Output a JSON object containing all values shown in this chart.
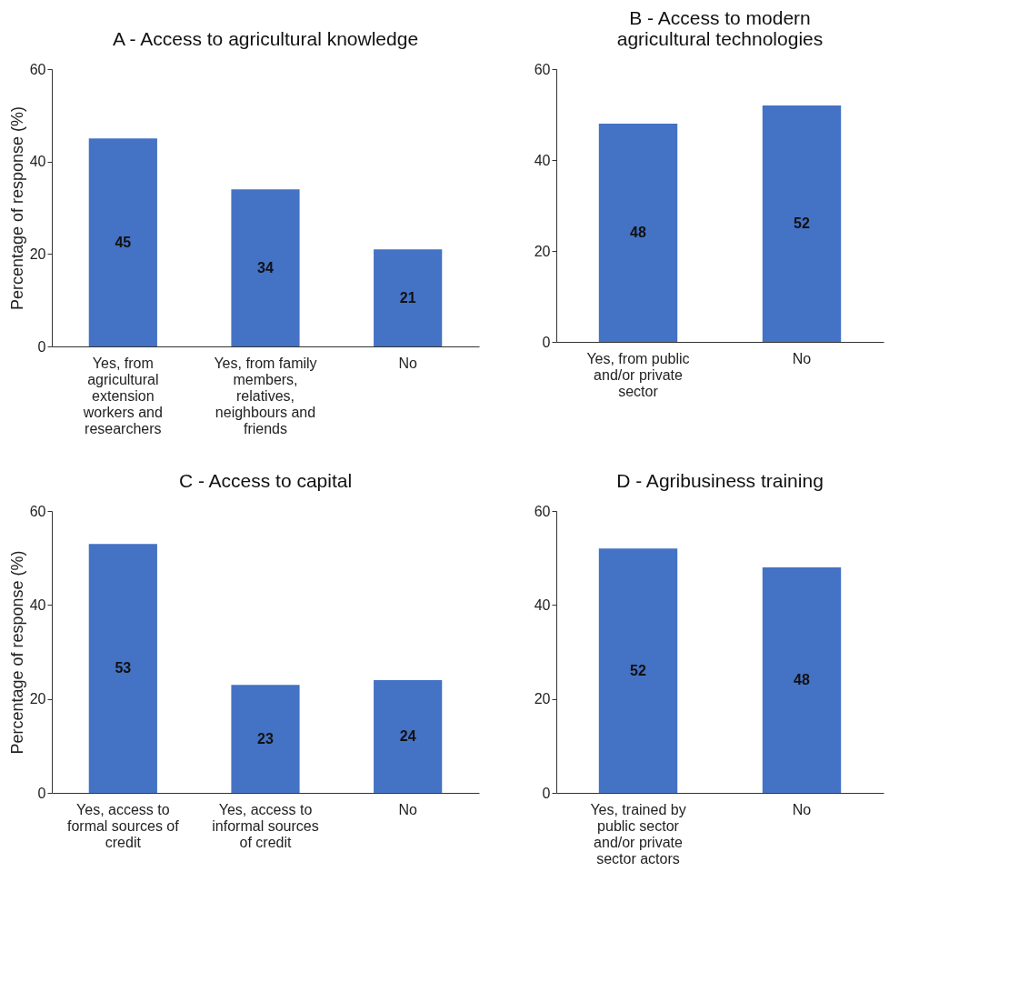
{
  "chart_data": [
    {
      "type": "bar",
      "title": "A - Access to agricultural knowledge",
      "ylabel": "Percentage of response (%)",
      "categories": [
        "Yes, from agricultural extension workers and researchers",
        "Yes, from family members, relatives, neighbours and friends",
        "No"
      ],
      "values": [
        45,
        34,
        21
      ],
      "color": "#4472c4",
      "ylim": [
        0,
        60
      ],
      "yticks": [
        0,
        20,
        40,
        60
      ],
      "grid": false,
      "data_labels": true
    },
    {
      "type": "bar",
      "title": "B - Access to modern agricultural technologies",
      "categories": [
        "Yes, from public and/or private sector",
        "No"
      ],
      "values": [
        48,
        52
      ],
      "color": "#4472c4",
      "ylim": [
        0,
        60
      ],
      "yticks": [
        0,
        20,
        40,
        60
      ],
      "grid": false,
      "data_labels": true
    },
    {
      "type": "bar",
      "title": "C - Access to capital",
      "ylabel": "Percentage of response (%)",
      "categories": [
        "Yes, access to formal sources of credit",
        "Yes, access to informal sources of credit",
        "No"
      ],
      "values": [
        53,
        23,
        24
      ],
      "color": "#4472c4",
      "ylim": [
        0,
        60
      ],
      "yticks": [
        0,
        20,
        40,
        60
      ],
      "grid": false,
      "data_labels": true
    },
    {
      "type": "bar",
      "title": "D - Agribusiness training",
      "categories": [
        "Yes, trained by public sector and/or private sector actors",
        "No"
      ],
      "values": [
        52,
        48
      ],
      "color": "#4472c4",
      "ylim": [
        0,
        60
      ],
      "yticks": [
        0,
        20,
        40,
        60
      ],
      "grid": false,
      "data_labels": true
    }
  ]
}
